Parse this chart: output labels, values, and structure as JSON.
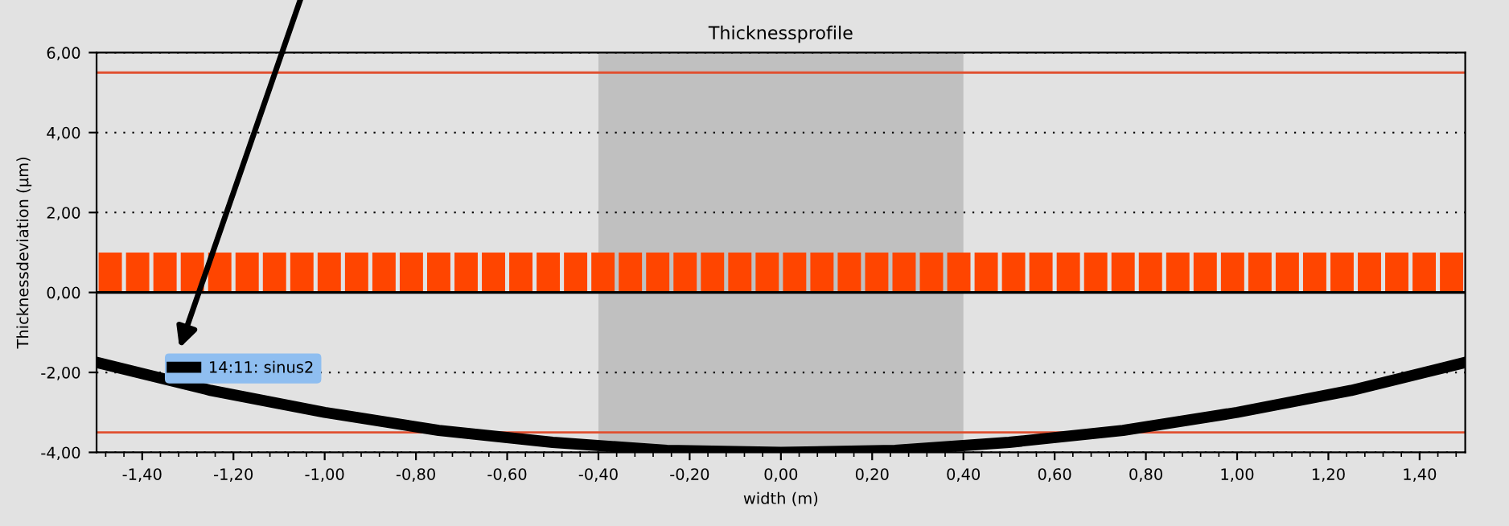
{
  "chart_data": {
    "type": "bar",
    "title": "Thicknessprofile",
    "xlabel": "width (m)",
    "ylabel": "Thicknessdeviation (µm)",
    "xlim": [
      -1.5,
      1.5
    ],
    "ylim": [
      -4,
      6
    ],
    "xticks": [
      {
        "value": -1.4,
        "label": "-1,40"
      },
      {
        "value": -1.2,
        "label": "-1,20"
      },
      {
        "value": -1.0,
        "label": "-1,00"
      },
      {
        "value": -0.8,
        "label": "-0,80"
      },
      {
        "value": -0.6,
        "label": "-0,60"
      },
      {
        "value": -0.4,
        "label": "-0,40"
      },
      {
        "value": -0.2,
        "label": "-0,20"
      },
      {
        "value": 0,
        "label": "0,00"
      },
      {
        "value": 0.2,
        "label": "0,20"
      },
      {
        "value": 0.4,
        "label": "0,40"
      },
      {
        "value": 0.6,
        "label": "0,60"
      },
      {
        "value": 0.8,
        "label": "0,80"
      },
      {
        "value": 1.0,
        "label": "1,00"
      },
      {
        "value": 1.2,
        "label": "1,20"
      },
      {
        "value": 1.4,
        "label": "1,40"
      }
    ],
    "yticks": [
      {
        "value": -4,
        "label": "-4,00"
      },
      {
        "value": -2,
        "label": "-2,00"
      },
      {
        "value": 0,
        "label": "0,00"
      },
      {
        "value": 2,
        "label": "2,00"
      },
      {
        "value": 4,
        "label": "4,00"
      },
      {
        "value": 6,
        "label": "6,00"
      }
    ],
    "grid": "y",
    "legend": "left",
    "series": [
      {
        "color": "#ff4500",
        "x": [
          -1.47,
          -1.41,
          -1.35,
          -1.29,
          -1.23,
          -1.17,
          -1.11,
          -1.05,
          -0.99,
          -0.93,
          -0.87,
          -0.81,
          -0.75,
          -0.69,
          -0.63,
          -0.57,
          -0.51,
          -0.45,
          -0.39,
          -0.33,
          -0.27,
          -0.21,
          -0.15,
          -0.09,
          -0.03,
          0.03,
          0.09,
          0.15,
          0.21,
          0.27,
          0.33,
          0.39,
          0.45,
          0.51,
          0.57,
          0.63,
          0.69,
          0.75,
          0.81,
          0.87,
          0.93,
          0.99,
          1.05,
          1.11,
          1.17,
          1.23,
          1.29,
          1.35,
          1.41,
          1.47
        ],
        "values": [
          1,
          1,
          1,
          1,
          1,
          1,
          1,
          1,
          1,
          1,
          1,
          1,
          1,
          1,
          1,
          1,
          1,
          1,
          1,
          1,
          1,
          1,
          1,
          1,
          1,
          1,
          1,
          1,
          1,
          1,
          1,
          1,
          1,
          1,
          1,
          1,
          1,
          1,
          1,
          1,
          1,
          1,
          1,
          1,
          1,
          1,
          1,
          1,
          1,
          1
        ]
      },
      {
        "type": "line",
        "name": "14:11: sinus2",
        "color": "#000000",
        "x": [
          -1.5,
          -1.25,
          -1.0,
          -0.75,
          -0.5,
          -0.25,
          0,
          0.25,
          0.5,
          0.75,
          1.0,
          1.25,
          1.5
        ],
        "values": [
          -1.75,
          -2.45,
          -3.0,
          -3.45,
          -3.75,
          -3.95,
          -4.0,
          -3.95,
          -3.75,
          -3.45,
          -3.0,
          -2.45,
          -1.75
        ]
      }
    ],
    "bands": [
      {
        "axis": "x",
        "from": -0.4,
        "to": 0.4,
        "color": "#c0c0c0"
      }
    ],
    "ref_lines": [
      {
        "axis": "y",
        "value": 5.5,
        "color": "#e05030"
      },
      {
        "axis": "y",
        "value": -3.5,
        "color": "#e05030"
      }
    ]
  }
}
